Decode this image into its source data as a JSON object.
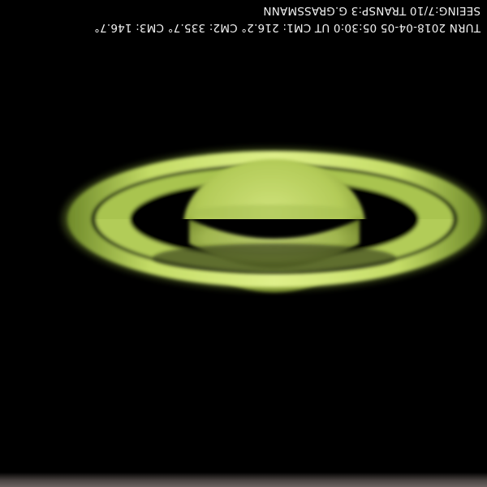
{
  "image": {
    "subject": "Saturn",
    "colors": {
      "background": "#000000",
      "ring_bright": "#c8e060",
      "ring_dark": "#4a5a1a",
      "globe": "#b8d060",
      "globe_band": "#9fb84a",
      "caption_text": "#f2f2f2"
    }
  },
  "caption": {
    "line_1": "TURN 2018-04-05 05:30:0 UT CM1: 216.2° CM2: 335.7° CM3: 146.7°",
    "line_2": "SEEING:7/10 TRANSP:3 G.GRASSMANN",
    "orientation": "rotated 180°"
  }
}
